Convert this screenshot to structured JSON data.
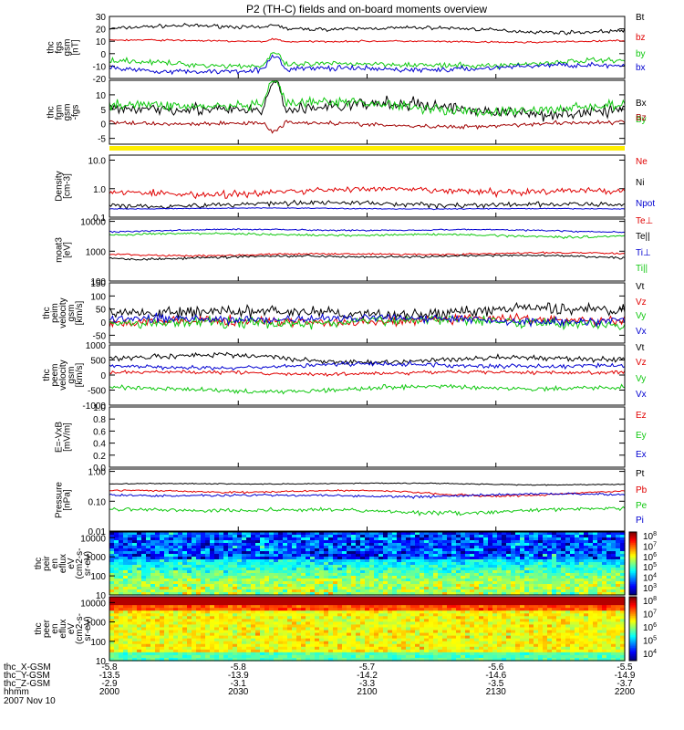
{
  "title": "P2 (TH-C) fields and on-board moments overview",
  "chart_data": [
    {
      "type": "line",
      "id": "fgs",
      "ylabel": [
        "thc",
        "fgs",
        "gsm",
        "[nT]"
      ],
      "yticks": [
        "30",
        "20",
        "10",
        "0",
        "-10",
        "-20"
      ],
      "ylim": [
        -20,
        30
      ],
      "scale": "linear",
      "series": [
        {
          "name": "Bt",
          "color": "#000000",
          "base": 20,
          "amp": 3,
          "noise": 1,
          "spike": 3,
          "spike_sign": -1
        },
        {
          "name": "bz",
          "color": "#e00000",
          "base": 10,
          "amp": 1,
          "noise": 0.5,
          "spike": 2,
          "spike_sign": -1
        },
        {
          "name": "by",
          "color": "#10c810",
          "base": -8,
          "amp": 3,
          "noise": 1.5,
          "spike": 10,
          "spike_sign": 1
        },
        {
          "name": "bx",
          "color": "#0000d0",
          "base": -12,
          "amp": 3,
          "noise": 1.5,
          "spike": 10,
          "spike_sign": 1
        }
      ]
    },
    {
      "type": "line",
      "id": "fgm",
      "ylabel": [
        "thc",
        "fgm",
        "gsm",
        "-fgs"
      ],
      "yticks": [
        "10",
        "5",
        "0",
        "-5"
      ],
      "ylim": [
        -7,
        15
      ],
      "scale": "linear",
      "series": [
        {
          "name": "Bx",
          "color": "#000000",
          "base": 5,
          "amp": 2,
          "noise": 1.5,
          "spike": 10,
          "spike_sign": 1
        },
        {
          "name": "By",
          "color": "#10c810",
          "base": 6,
          "amp": 2,
          "noise": 1.2,
          "spike": 9,
          "spike_sign": 1
        },
        {
          "name": "Bz",
          "color": "#a00000",
          "base": 0,
          "amp": 1,
          "noise": 0.5,
          "spike": -3,
          "spike_sign": 1
        }
      ]
    },
    {
      "type": "line",
      "id": "density",
      "ylabel": [
        "Density",
        "[cm-3]"
      ],
      "yticks": [
        "10.0",
        "1.0",
        "0.1"
      ],
      "ylim": [
        0.1,
        15
      ],
      "scale": "log",
      "series": [
        {
          "name": "Ne",
          "color": "#e00000",
          "base": 0.8,
          "amp": 0.2,
          "noise": 0.15
        },
        {
          "name": "Ni",
          "color": "#000000",
          "base": 0.28,
          "amp": 0.05,
          "noise": 0.04
        },
        {
          "name": "Npot",
          "color": "#0000d0",
          "base": 0.2,
          "amp": 0.01,
          "noise": 0.005
        }
      ]
    },
    {
      "type": "line",
      "id": "temperature",
      "ylabel": [
        "moat3",
        "[eV]"
      ],
      "yticks": [
        "10000",
        "1000",
        "100"
      ],
      "ylim": [
        100,
        12000
      ],
      "scale": "log",
      "series": [
        {
          "name": "Te⊥",
          "color": "#e00000",
          "base": 800,
          "amp": 100,
          "noise": 40
        },
        {
          "name": "Te||",
          "color": "#000000",
          "base": 650,
          "amp": 100,
          "noise": 40
        },
        {
          "name": "Ti⊥",
          "color": "#0000d0",
          "base": 5000,
          "amp": 600,
          "noise": 200
        },
        {
          "name": "Ti||",
          "color": "#10c810",
          "base": 3500,
          "amp": 500,
          "noise": 200
        }
      ]
    },
    {
      "type": "line",
      "id": "peim-velocity",
      "ylabel": [
        "thc",
        "peim",
        "velocity",
        "gsm",
        "[km/s]"
      ],
      "yticks": [
        "150",
        "100",
        "50",
        "0",
        "-50"
      ],
      "ylim": [
        -80,
        150
      ],
      "scale": "linear",
      "series": [
        {
          "name": "Vt",
          "color": "#000000",
          "base": 40,
          "amp": 15,
          "noise": 15
        },
        {
          "name": "Vz",
          "color": "#e00000",
          "base": 5,
          "amp": 10,
          "noise": 12
        },
        {
          "name": "Vy",
          "color": "#10c810",
          "base": 0,
          "amp": 12,
          "noise": 14
        },
        {
          "name": "Vx",
          "color": "#0000d0",
          "base": 10,
          "amp": 10,
          "noise": 12
        }
      ]
    },
    {
      "type": "line",
      "id": "peem-velocity",
      "ylabel": [
        "thc",
        "peem",
        "velocity",
        "gsm",
        "[km/s]"
      ],
      "yticks": [
        "1000",
        "500",
        "0",
        "-500",
        "-1000"
      ],
      "ylim": [
        -1000,
        1000
      ],
      "scale": "linear",
      "series": [
        {
          "name": "Vt",
          "color": "#000000",
          "base": 550,
          "amp": 150,
          "noise": 60
        },
        {
          "name": "Vz",
          "color": "#e00000",
          "base": 80,
          "amp": 50,
          "noise": 40
        },
        {
          "name": "Vy",
          "color": "#10c810",
          "base": -450,
          "amp": 100,
          "noise": 50
        },
        {
          "name": "Vx",
          "color": "#0000d0",
          "base": 300,
          "amp": 80,
          "noise": 50
        }
      ]
    },
    {
      "type": "line",
      "id": "efield",
      "ylabel": [
        "E=-VxB",
        "[mV/m]"
      ],
      "yticks": [
        "1.0",
        "0.8",
        "0.6",
        "0.4",
        "0.2",
        "0.0"
      ],
      "ylim": [
        0,
        1
      ],
      "scale": "linear",
      "series": [
        {
          "name": "Ez",
          "color": "#e00000",
          "empty": true
        },
        {
          "name": "Ey",
          "color": "#10c810",
          "empty": true
        },
        {
          "name": "Ex",
          "color": "#0000d0",
          "empty": true
        }
      ]
    },
    {
      "type": "line",
      "id": "pressure",
      "ylabel": [
        "Pressure",
        "[nPa]"
      ],
      "yticks": [
        "1.00",
        "0.10",
        "0.01"
      ],
      "ylim": [
        0.01,
        1.2
      ],
      "scale": "log",
      "series": [
        {
          "name": "Pt",
          "color": "#000000",
          "base": 0.38,
          "amp": 0.03,
          "noise": 0.01
        },
        {
          "name": "Pb",
          "color": "#e00000",
          "base": 0.2,
          "amp": 0.05,
          "noise": 0.01
        },
        {
          "name": "Pe",
          "color": "#10c810",
          "base": 0.05,
          "amp": 0.01,
          "noise": 0.005
        },
        {
          "name": "Pi",
          "color": "#0000d0",
          "base": 0.16,
          "amp": 0.02,
          "noise": 0.01
        }
      ]
    },
    {
      "type": "heatmap",
      "id": "peir-spectrogram",
      "ylabel": [
        "thc",
        "peir",
        "en",
        "eflux",
        "eV",
        "(cm2-s-",
        "sr-eV)"
      ],
      "yticks": [
        "10000",
        "1000",
        "100",
        "10"
      ],
      "ylim": [
        10,
        20000
      ],
      "scale": "log",
      "colorbar": {
        "labels": [
          "10^8",
          "10^7",
          "10^6",
          "10^5",
          "10^4",
          "10^3"
        ]
      }
    },
    {
      "type": "heatmap",
      "id": "peer-spectrogram",
      "ylabel": [
        "thc",
        "peer",
        "en",
        "eflux",
        "eV",
        "(cm2-s-",
        "sr-eV)"
      ],
      "yticks": [
        "10000",
        "1000",
        "100",
        "10"
      ],
      "ylim": [
        10,
        20000
      ],
      "scale": "log",
      "colorbar": {
        "labels": [
          "10^8",
          "10^7",
          "10^6",
          "10^5",
          "10^4"
        ]
      }
    }
  ],
  "x_axis": {
    "labels": [
      "thc_X-GSM",
      "thc_Y-GSM",
      "thc_Z-GSM",
      "hhmm",
      "2007 Nov 10"
    ],
    "ticks": [
      {
        "X": "-5.8",
        "Y": "-13.5",
        "Z": "-2.9",
        "hhmm": "2000"
      },
      {
        "X": "-5.8",
        "Y": "-13.9",
        "Z": "-3.1",
        "hhmm": "2030"
      },
      {
        "X": "-5.7",
        "Y": "-14.2",
        "Z": "-3.3",
        "hhmm": "2100"
      },
      {
        "X": "-5.6",
        "Y": "-14.6",
        "Z": "-3.5",
        "hhmm": "2130"
      },
      {
        "X": "-5.5",
        "Y": "-14.9",
        "Z": "-3.7",
        "hhmm": "2200"
      }
    ]
  }
}
